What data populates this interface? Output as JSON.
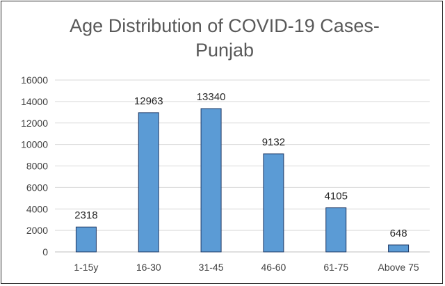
{
  "chart_data": {
    "type": "bar",
    "title_lines": [
      "Age Distribution of COVID-19 Cases-",
      "Punjab"
    ],
    "categories": [
      "1-15y",
      "16-30",
      "31-45",
      "46-60",
      "61-75",
      "Above 75"
    ],
    "values": [
      2318,
      12963,
      13340,
      9132,
      4105,
      648
    ],
    "data_labels": [
      "2318",
      "12963",
      "13340",
      "9132",
      "4105",
      "648"
    ],
    "y_ticks": [
      "0",
      "2000",
      "4000",
      "6000",
      "8000",
      "10000",
      "12000",
      "14000",
      "16000"
    ],
    "ylim": [
      0,
      16000
    ],
    "grid": true,
    "legend": "none",
    "colors": {
      "bar_fill": "#5b9bd5",
      "bar_stroke": "#1f3864",
      "grid": "#d9d9d9",
      "axis": "#bfbfbf"
    }
  }
}
